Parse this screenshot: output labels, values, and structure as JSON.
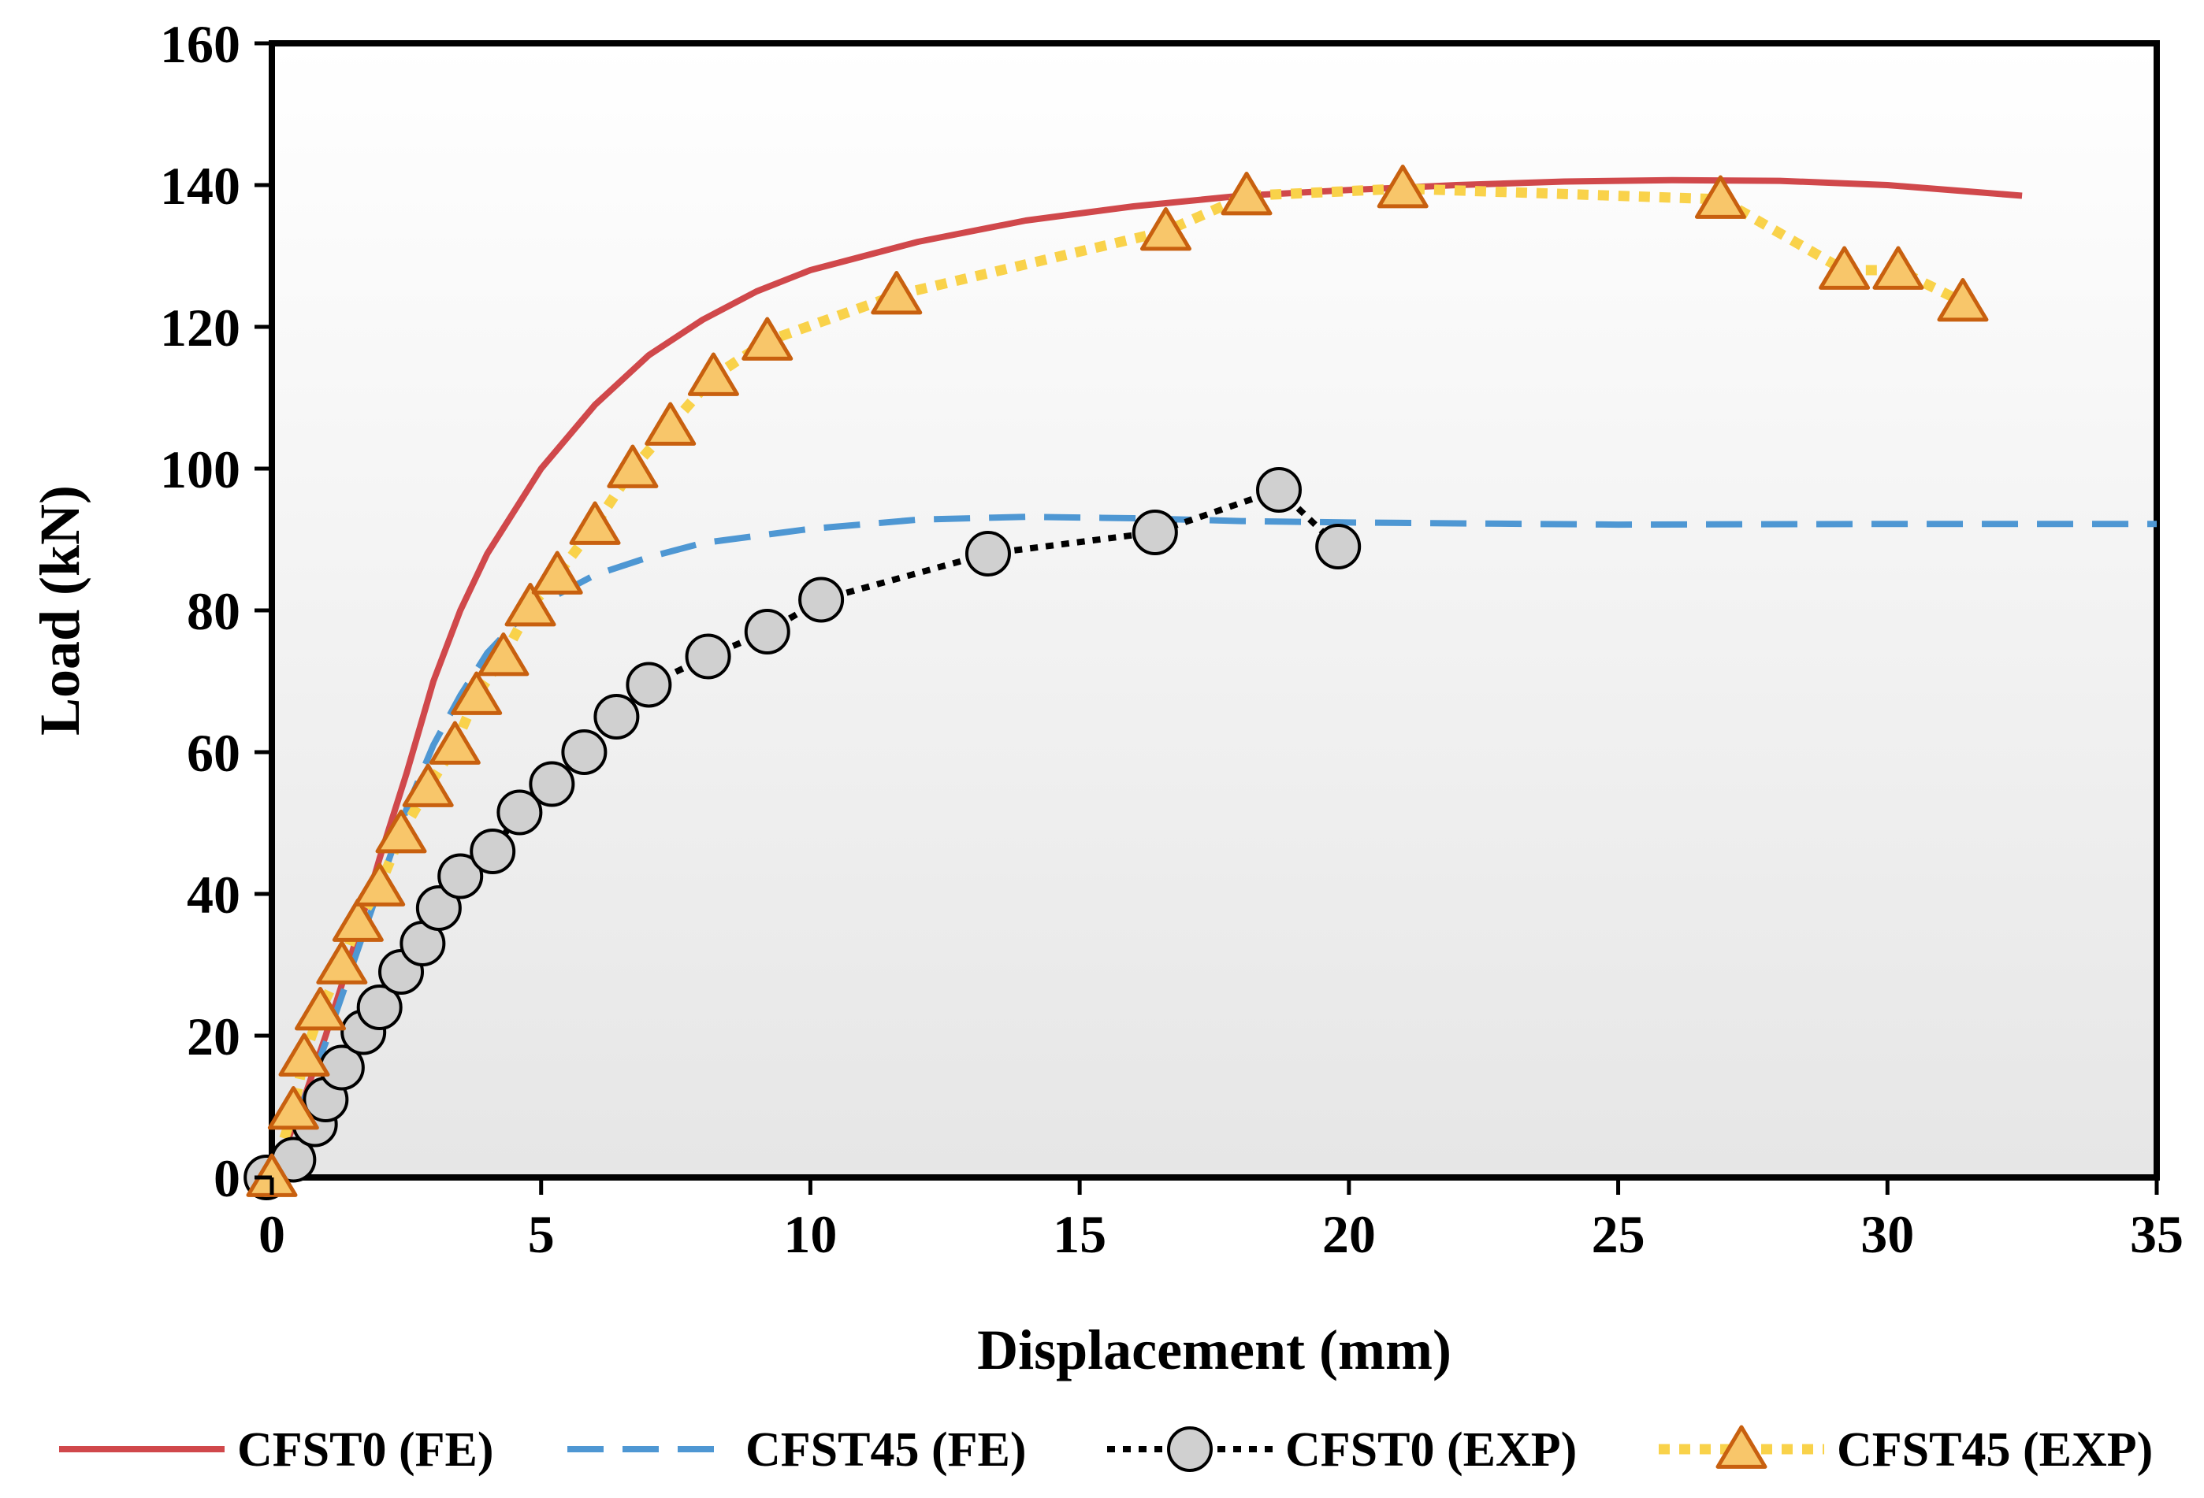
{
  "chart_data": {
    "type": "line",
    "title": "",
    "xlabel": "Displacement (mm)",
    "ylabel": "Load (kN)",
    "xlim": [
      0,
      35
    ],
    "ylim": [
      0,
      160
    ],
    "xticks": [
      0,
      5,
      10,
      15,
      20,
      25,
      30,
      35
    ],
    "yticks": [
      0,
      20,
      40,
      60,
      80,
      100,
      120,
      140,
      160
    ],
    "grid": false,
    "legend_position": "bottom",
    "series": [
      {
        "name": "CFST0 (FE)",
        "style": "solid",
        "marker": "none",
        "color": "#d0484b",
        "x": [
          0,
          0.5,
          1,
          1.5,
          2,
          2.5,
          3,
          3.5,
          4,
          5,
          6,
          7,
          8,
          9,
          10,
          12,
          14,
          16,
          18,
          20,
          22,
          24,
          26,
          28,
          30,
          32.5
        ],
        "y": [
          0,
          9,
          20,
          32,
          45,
          57,
          70,
          80,
          88,
          100,
          109,
          116,
          121,
          125,
          128,
          132,
          135,
          137,
          138.5,
          139.3,
          140,
          140.5,
          140.7,
          140.6,
          140,
          138.5
        ]
      },
      {
        "name": "CFST45 (FE)",
        "style": "dashed",
        "marker": "none",
        "color": "#4e97d3",
        "x": [
          0,
          0.5,
          1,
          1.5,
          2,
          2.5,
          3,
          3.5,
          4,
          4.5,
          5,
          6,
          7,
          8,
          10,
          12,
          14,
          16,
          18,
          20,
          25,
          30,
          35
        ],
        "y": [
          0,
          9,
          19,
          30,
          41,
          52,
          61,
          68,
          74,
          78,
          81,
          85,
          87.5,
          89.5,
          91.5,
          92.8,
          93.2,
          93,
          92.6,
          92.4,
          92.1,
          92.2,
          92.2
        ]
      },
      {
        "name": "CFST0 (EXP)",
        "style": "dotted",
        "marker": "circle",
        "color": "#000000",
        "marker_fill": "#d0d0d0",
        "x": [
          -0.1,
          0.4,
          0.8,
          1.0,
          1.3,
          1.7,
          2.0,
          2.4,
          2.8,
          3.1,
          3.5,
          4.1,
          4.6,
          5.2,
          5.8,
          6.4,
          7.0,
          8.1,
          9.2,
          10.2,
          13.3,
          16.4,
          18.7,
          19.8
        ],
        "y": [
          0,
          2.5,
          7.5,
          11,
          15.5,
          20.5,
          24,
          29,
          33,
          38,
          42.5,
          46,
          51.5,
          55.5,
          60,
          65,
          69.5,
          73.5,
          77,
          81.5,
          88,
          91,
          97,
          89
        ]
      },
      {
        "name": "CFST45 (EXP)",
        "style": "dotted",
        "marker": "triangle",
        "color": "#f9d24a",
        "marker_fill": "#f8c66a",
        "marker_edge": "#c8600f",
        "x": [
          0,
          0.4,
          0.6,
          0.9,
          1.3,
          1.6,
          2.0,
          2.4,
          2.9,
          3.4,
          3.8,
          4.3,
          4.8,
          5.3,
          6.0,
          6.7,
          7.4,
          8.2,
          9.2,
          11.6,
          16.6,
          18.1,
          21.0,
          26.9,
          29.2,
          30.2,
          31.4
        ],
        "y": [
          0,
          9.5,
          17,
          23.5,
          30,
          36,
          41,
          48.5,
          55,
          61,
          68,
          73.5,
          80.5,
          85,
          92,
          100,
          106,
          113,
          118,
          124.5,
          133.5,
          138.5,
          139.5,
          138,
          128,
          128,
          123.5
        ]
      }
    ]
  }
}
